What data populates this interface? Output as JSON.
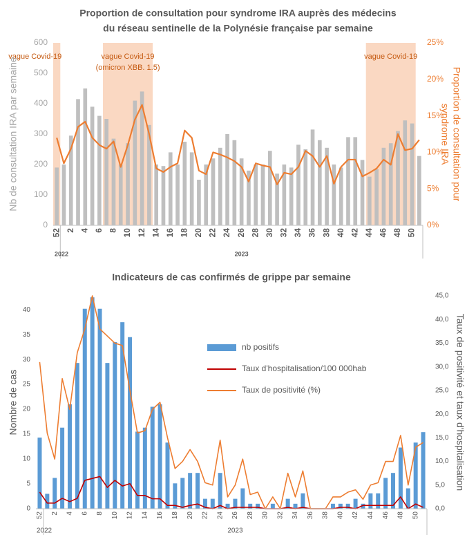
{
  "chart_data": [
    {
      "type": "bar",
      "title": [
        "Proportion de consultation pour syndrome IRA auprès des médecins",
        "du réseau sentinelle de la Polynésie française par semaine"
      ],
      "y_label": "Nb de consultation IRA par semaine",
      "y2_label": [
        "Proportion de consultation pour",
        "syndrome IRA"
      ],
      "categories": [
        "52",
        null,
        "2",
        null,
        "4",
        null,
        "6",
        null,
        "8",
        null,
        "10",
        null,
        "12",
        null,
        "14",
        null,
        "16",
        null,
        "18",
        null,
        "20",
        null,
        "22",
        null,
        "24",
        null,
        "26",
        null,
        "28",
        null,
        "30",
        null,
        "32",
        null,
        "34",
        null,
        "36",
        null,
        "38",
        null,
        "40",
        null,
        "42",
        null,
        "44",
        null,
        "46",
        null,
        "48",
        null,
        "50",
        null
      ],
      "groups": [
        {
          "label": "2022",
          "from": 0,
          "to": 0
        },
        {
          "label": "2023",
          "from": 1,
          "to": 51
        }
      ],
      "bands": [
        {
          "label": [
            "vague Covid-19"
          ],
          "from": 0,
          "to": 0
        },
        {
          "label": [
            "vague Covid-19",
            "(omicron XBB. 1.5)"
          ],
          "from": 7,
          "to": 13
        },
        {
          "label": [
            "vague Covid-19"
          ],
          "from": 44,
          "to": 50
        }
      ],
      "band_color": "#f8cbad",
      "ylim": [
        0,
        600
      ],
      "yticks": [
        0,
        100,
        200,
        300,
        400,
        500,
        600
      ],
      "y2lim": [
        0,
        25
      ],
      "y2ticks": [
        {
          "value": 0,
          "label": "0%"
        },
        {
          "value": 5,
          "label": "5%"
        },
        {
          "value": 10,
          "label": "10%"
        },
        {
          "value": 15,
          "label": "15%"
        },
        {
          "value": 20,
          "label": "20%"
        },
        {
          "value": 25,
          "label": "25%"
        }
      ],
      "legend": false,
      "series": [
        {
          "type": "bar",
          "color": "#bfbfbf",
          "values": [
            190,
            200,
            295,
            415,
            450,
            390,
            360,
            350,
            285,
            200,
            270,
            410,
            440,
            330,
            200,
            195,
            240,
            200,
            275,
            240,
            150,
            200,
            220,
            255,
            300,
            280,
            220,
            180,
            200,
            200,
            245,
            170,
            200,
            190,
            265,
            250,
            315,
            280,
            255,
            200,
            190,
            290,
            290,
            215,
            160,
            185,
            255,
            270,
            310,
            345,
            335,
            228
          ]
        },
        {
          "type": "line",
          "axis": "y2",
          "color": "#ed7d31",
          "values": [
            12,
            8.5,
            10.5,
            13.5,
            14.2,
            12,
            11,
            10.5,
            11.5,
            8,
            11,
            14.5,
            16.5,
            12.5,
            7.8,
            7.3,
            8,
            8.5,
            13,
            12,
            7.5,
            7,
            10,
            9.7,
            9.3,
            8.8,
            8,
            6,
            8.5,
            8.2,
            8,
            5.6,
            7.2,
            7,
            8,
            10.2,
            9.5,
            8,
            9.5,
            5.7,
            8,
            9,
            9,
            6.7,
            7.2,
            7.8,
            9,
            8.3,
            12.5,
            10.3,
            10.5,
            11.7
          ]
        }
      ]
    },
    {
      "type": "bar",
      "title": [
        "Indicateurs de cas confirmés de grippe par semaine"
      ],
      "y_label": "Nombre de cas",
      "y2_label": [
        "Taux de positivité et taux d'hospitalisation"
      ],
      "categories": [
        "52",
        null,
        "2",
        null,
        "4",
        null,
        "6",
        null,
        "8",
        null,
        "10",
        null,
        "12",
        null,
        "14",
        null,
        "16",
        null,
        "18",
        null,
        "20",
        null,
        "22",
        null,
        "24",
        null,
        "26",
        null,
        "28",
        null,
        "30",
        null,
        "32",
        null,
        "34",
        null,
        "36",
        null,
        "38",
        null,
        "40",
        null,
        "42",
        null,
        "44",
        null,
        "46",
        null,
        "48",
        null,
        "50",
        null
      ],
      "groups": [
        {
          "label": "2022",
          "from": 0,
          "to": 0
        },
        {
          "label": "2023",
          "from": 1,
          "to": 51
        }
      ],
      "bands": [],
      "ylim": [
        0,
        42.8
      ],
      "yticks": [
        0,
        5,
        10,
        15,
        20,
        25,
        30,
        35,
        40
      ],
      "y2lim": [
        0,
        45
      ],
      "y2ticks": [
        {
          "value": 0,
          "label": "0,0"
        },
        {
          "value": 5,
          "label": "5,0"
        },
        {
          "value": 10,
          "label": "10,0"
        },
        {
          "value": 15,
          "label": "15,0"
        },
        {
          "value": 20,
          "label": "20,0"
        },
        {
          "value": 25,
          "label": "25,0"
        },
        {
          "value": 30,
          "label": "30,0"
        },
        {
          "value": 35,
          "label": "35,0"
        },
        {
          "value": 40,
          "label": "40,0"
        },
        {
          "value": 45,
          "label": "45,0"
        }
      ],
      "legend": true,
      "series": [
        {
          "type": "bar",
          "name": "nb positifs",
          "color": "#5b9bd5",
          "values": [
            14.3,
            3,
            6.2,
            16.3,
            21,
            29.3,
            40.2,
            42.5,
            40.2,
            29.3,
            33.5,
            37.5,
            34.5,
            15.5,
            16.3,
            20.5,
            21,
            13.3,
            5.1,
            6.2,
            7.2,
            7.2,
            2,
            2,
            7.2,
            1,
            2,
            4.1,
            1,
            1,
            0,
            1,
            0,
            2,
            1,
            3.1,
            0,
            0,
            0,
            1,
            1,
            1,
            2,
            1,
            3.1,
            3.1,
            6.2,
            7.2,
            12.3,
            4.1,
            13.3,
            15.4
          ]
        },
        {
          "type": "line",
          "axis": "y2",
          "name": "Taux d'hospitalisation/100 000hab",
          "color": "#c00000",
          "values": [
            3.5,
            1.2,
            1.2,
            2.2,
            1.5,
            2.2,
            6,
            6.4,
            6.8,
            4.5,
            6,
            4.8,
            5.3,
            2.8,
            2.8,
            2.1,
            2.1,
            0.7,
            0.7,
            0.3,
            0.7,
            1,
            0.3,
            0,
            0.7,
            0,
            0.3,
            0.3,
            0.3,
            0.3,
            0,
            0,
            0,
            0.3,
            0,
            0.3,
            0,
            0,
            0,
            0,
            0.3,
            0.3,
            0,
            0.7,
            0.7,
            0.7,
            0.7,
            0.7,
            2.5,
            0,
            1,
            0.3
          ]
        },
        {
          "type": "line",
          "axis": "y2",
          "name": "Taux de positivité (%)",
          "color": "#ed7d31",
          "values": [
            31,
            16,
            10.5,
            27.5,
            21,
            33,
            38,
            45,
            38,
            36.5,
            35,
            34.5,
            25,
            16,
            16.5,
            21,
            22.5,
            15,
            8.5,
            10,
            12.5,
            10,
            5.5,
            5,
            14.5,
            2.5,
            5,
            10.5,
            3,
            3.5,
            0,
            2.5,
            0,
            7.5,
            2.5,
            8,
            0,
            0,
            0,
            2.5,
            2.5,
            3.5,
            4,
            2,
            5,
            5.5,
            10,
            10,
            15.5,
            5,
            13,
            14
          ]
        }
      ]
    }
  ]
}
